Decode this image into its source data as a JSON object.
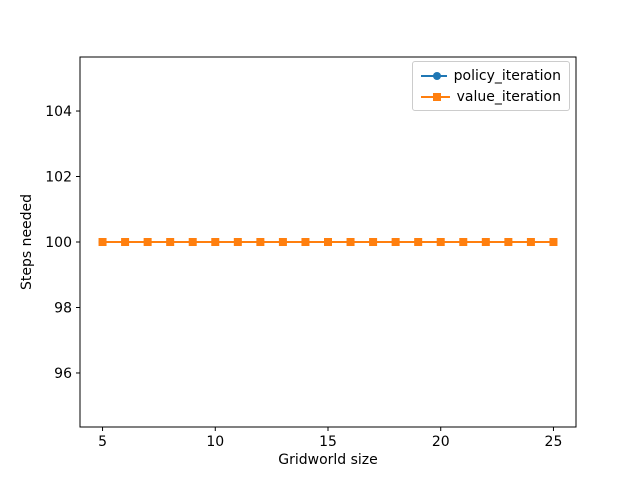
{
  "chart_data": {
    "type": "line",
    "title": "",
    "xlabel": "Gridworld size",
    "ylabel": "Steps needed",
    "x": [
      5,
      6,
      7,
      8,
      9,
      10,
      11,
      12,
      13,
      14,
      15,
      16,
      17,
      18,
      19,
      20,
      21,
      22,
      23,
      24,
      25
    ],
    "series": [
      {
        "name": "policy_iteration",
        "color": "#1f77b4",
        "marker": "circle",
        "values": [
          100,
          100,
          100,
          100,
          100,
          100,
          100,
          100,
          100,
          100,
          100,
          100,
          100,
          100,
          100,
          100,
          100,
          100,
          100,
          100,
          100
        ]
      },
      {
        "name": "value_iteration",
        "color": "#ff7f0e",
        "marker": "square",
        "values": [
          100,
          100,
          100,
          100,
          100,
          100,
          100,
          100,
          100,
          100,
          100,
          100,
          100,
          100,
          100,
          100,
          100,
          100,
          100,
          100,
          100
        ]
      }
    ],
    "xlim": [
      4,
      26
    ],
    "ylim": [
      94.35,
      105.65
    ],
    "xticks": [
      5,
      10,
      15,
      20,
      25
    ],
    "yticks": [
      96,
      98,
      100,
      102,
      104
    ],
    "grid": false,
    "legend_position": "upper right"
  }
}
